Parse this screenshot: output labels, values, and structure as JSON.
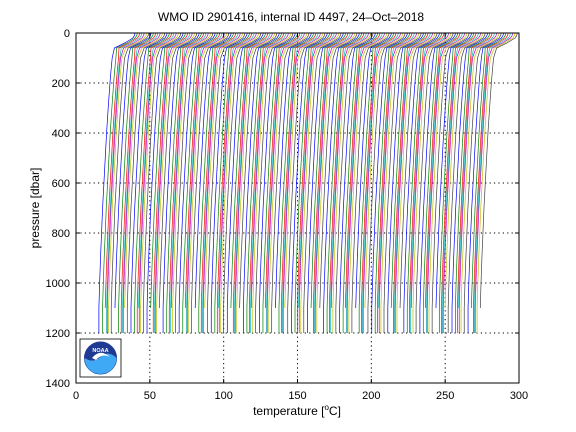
{
  "chart_data": {
    "type": "line",
    "title": "WMO ID 2901416, internal ID 4497, 24–Oct–2018",
    "xlabel": "temperature [",
    "xlabel_sup": "o",
    "xlabel_unit": "C]",
    "ylabel": "pressure [dbar]",
    "xlim": [
      0,
      300
    ],
    "ylim": [
      1400,
      0
    ],
    "y_reversed": true,
    "grid": true,
    "xticks": [
      0,
      50,
      100,
      150,
      200,
      250,
      300
    ],
    "yticks": [
      0,
      200,
      400,
      600,
      800,
      1000,
      1200,
      1400
    ],
    "profile_count": 168,
    "profile_spacing": 1.55,
    "profile_template": {
      "pressure": [
        0,
        10,
        20,
        40,
        60,
        100,
        150,
        200,
        300,
        400,
        500,
        600,
        700,
        800,
        900,
        1000,
        1100
      ],
      "temperature_offset": [
        28.0,
        27.6,
        26.5,
        21.0,
        14.0,
        12.5,
        11.7,
        11.0,
        9.8,
        8.7,
        7.8,
        6.9,
        6.0,
        5.3,
        4.6,
        4.0,
        3.5
      ]
    },
    "first_profile_start": 12.0,
    "deep_segment": {
      "from_pressure": 1100,
      "to_pressure": 1200
    },
    "series_colors": [
      "#0000ff",
      "#008000",
      "#ff0000",
      "#00bfbf",
      "#bf00bf",
      "#bfbf00",
      "#404040"
    ]
  },
  "logo": {
    "icon": "noaa-logo-icon",
    "text": "NOAA",
    "colors": {
      "dark_blue": "#1f3a93",
      "light_blue": "#3fa9f5",
      "white": "#ffffff"
    }
  }
}
